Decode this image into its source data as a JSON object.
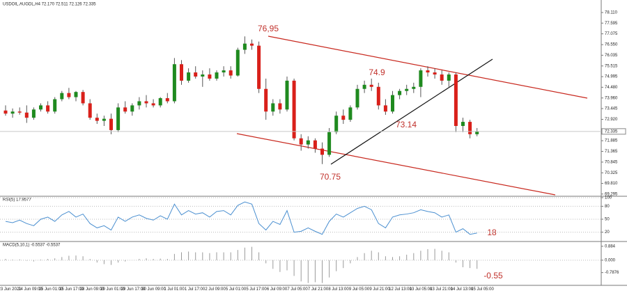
{
  "chart_data": [
    {
      "type": "candlestick",
      "title": "USDOIL.AUGDL,H4  72.170 72.511 72.126 72.335",
      "up_color": "#1f8a1f",
      "down_color": "#d9201a",
      "ylim": [
        69.22,
        78.65
      ],
      "yticks": [
        {
          "value": 78.11,
          "label": "78.110"
        },
        77.595,
        77.075,
        {
          "value": 76.55,
          "label": "76.550"
        },
        76.035,
        75.515,
        74.995,
        {
          "value": 74.48,
          "label": "74.480"
        },
        {
          "value": 73.96,
          "label": "73.960"
        },
        73.445,
        {
          "value": 72.92,
          "label": "72.920"
        },
        71.885,
        71.365,
        70.845,
        70.325,
        {
          "value": 69.81,
          "label": "69.810"
        },
        69.295
      ],
      "last_price": 72.335,
      "annotations": [
        "76,95",
        "74.9",
        "73.14",
        "70.75"
      ],
      "time_labels": [
        "23 Jun 2021",
        "24 Jun 09:00",
        "25 Jun 01:00",
        "25 Jun 17:00",
        "28 Jun 09:00",
        "29 Jun 01:00",
        "29 Jun 17:00",
        "30 Jun 09:00",
        "1 Jul 01:00",
        "1 Jul 17:00",
        "2 Jul 09:00",
        "5 Jul 01:00",
        "5 Jul 17:00",
        "6 Jul 09:00",
        "7 Jul 05:00",
        "7 Jul 21:00",
        "8 Jul 13:00",
        "9 Jul 05:00",
        "9 Jul 21:00",
        "12 Jul 13:00",
        "13 Jul 05:00",
        "13 Jul 21:00",
        "14 Jul 13:00",
        "15 Jul 05:00"
      ],
      "ohlc": [
        [
          73.35,
          73.6,
          73.1,
          73.2
        ],
        [
          73.2,
          73.45,
          73.0,
          73.3
        ],
        [
          73.3,
          73.5,
          73.15,
          73.25
        ],
        [
          73.25,
          73.6,
          72.75,
          73.0
        ],
        [
          73.0,
          73.5,
          72.9,
          73.4
        ],
        [
          73.4,
          73.7,
          73.3,
          73.6
        ],
        [
          73.6,
          73.8,
          73.2,
          73.3
        ],
        [
          73.3,
          74.0,
          73.2,
          73.9
        ],
        [
          73.9,
          74.3,
          73.8,
          74.2
        ],
        [
          74.2,
          74.45,
          73.9,
          74.0
        ],
        [
          74.0,
          74.3,
          73.8,
          74.25
        ],
        [
          74.25,
          74.35,
          73.6,
          73.7
        ],
        [
          73.7,
          73.9,
          72.9,
          73.0
        ],
        [
          73.0,
          73.2,
          72.7,
          72.85
        ],
        [
          72.85,
          73.1,
          72.6,
          72.95
        ],
        [
          72.95,
          73.2,
          72.2,
          72.4
        ],
        [
          72.4,
          73.7,
          72.3,
          73.5
        ],
        [
          73.5,
          73.8,
          73.2,
          73.3
        ],
        [
          73.3,
          73.7,
          73.1,
          73.6
        ],
        [
          73.6,
          74.0,
          73.4,
          73.8
        ],
        [
          73.8,
          74.1,
          73.5,
          73.7
        ],
        [
          73.7,
          73.9,
          73.5,
          73.6
        ],
        [
          73.6,
          74.0,
          73.5,
          73.95
        ],
        [
          73.95,
          74.2,
          73.7,
          73.8
        ],
        [
          73.8,
          75.9,
          73.7,
          75.6
        ],
        [
          75.6,
          75.8,
          74.6,
          74.8
        ],
        [
          74.8,
          75.4,
          74.7,
          75.2
        ],
        [
          75.2,
          75.5,
          74.9,
          75.0
        ],
        [
          75.0,
          75.3,
          74.5,
          75.1
        ],
        [
          75.1,
          75.4,
          74.8,
          74.9
        ],
        [
          74.9,
          75.3,
          74.8,
          75.2
        ],
        [
          75.2,
          75.5,
          75.0,
          75.3
        ],
        [
          75.3,
          75.5,
          74.9,
          75.05
        ],
        [
          75.05,
          76.4,
          75.0,
          76.3
        ],
        [
          76.3,
          76.95,
          76.1,
          76.6
        ],
        [
          76.6,
          76.8,
          76.3,
          76.5
        ],
        [
          76.5,
          76.7,
          74.2,
          74.4
        ],
        [
          74.4,
          74.9,
          72.9,
          73.3
        ],
        [
          73.3,
          73.9,
          73.1,
          73.7
        ],
        [
          73.7,
          73.9,
          73.2,
          73.4
        ],
        [
          73.4,
          75.0,
          73.3,
          74.8
        ],
        [
          74.8,
          74.9,
          71.9,
          72.0
        ],
        [
          72.0,
          72.2,
          71.4,
          71.7
        ],
        [
          71.7,
          72.1,
          71.5,
          71.9
        ],
        [
          71.9,
          72.0,
          71.3,
          71.5
        ],
        [
          71.5,
          71.8,
          70.75,
          71.2
        ],
        [
          71.2,
          72.5,
          71.1,
          72.3
        ],
        [
          72.3,
          73.3,
          72.2,
          73.1
        ],
        [
          73.1,
          73.4,
          72.7,
          72.9
        ],
        [
          72.9,
          73.6,
          72.8,
          73.5
        ],
        [
          73.5,
          74.6,
          73.4,
          74.4
        ],
        [
          74.4,
          74.8,
          74.2,
          74.6
        ],
        [
          74.6,
          74.9,
          74.3,
          74.5
        ],
        [
          74.5,
          74.7,
          73.4,
          73.6
        ],
        [
          73.6,
          73.9,
          73.14,
          73.3
        ],
        [
          73.3,
          74.3,
          73.2,
          74.1
        ],
        [
          74.1,
          74.4,
          73.9,
          74.3
        ],
        [
          74.3,
          74.6,
          74.1,
          74.4
        ],
        [
          74.4,
          74.7,
          74.2,
          74.5
        ],
        [
          74.5,
          75.4,
          74.0,
          75.3
        ],
        [
          75.3,
          75.5,
          75.0,
          75.2
        ],
        [
          75.2,
          75.4,
          74.9,
          75.1
        ],
        [
          75.1,
          75.3,
          74.6,
          74.8
        ],
        [
          74.8,
          75.2,
          74.5,
          75.1
        ],
        [
          75.1,
          75.2,
          72.3,
          72.6
        ],
        [
          72.6,
          73.0,
          72.3,
          72.8
        ],
        [
          72.8,
          72.9,
          72.0,
          72.2
        ],
        [
          72.2,
          72.5,
          72.1,
          72.335
        ]
      ]
    },
    {
      "type": "line",
      "title": "RSI(5) 17.9577",
      "color": "#4a8fd0",
      "ylim": [
        0,
        100
      ],
      "yticks": [
        100,
        80,
        50,
        20
      ],
      "annotations": [
        "18"
      ],
      "values": [
        45,
        42,
        48,
        40,
        35,
        50,
        55,
        45,
        60,
        68,
        55,
        62,
        40,
        30,
        35,
        25,
        55,
        45,
        55,
        60,
        52,
        48,
        58,
        50,
        85,
        60,
        70,
        62,
        65,
        55,
        68,
        70,
        60,
        82,
        90,
        85,
        40,
        25,
        45,
        38,
        70,
        20,
        22,
        30,
        22,
        15,
        45,
        62,
        55,
        65,
        75,
        80,
        72,
        40,
        30,
        55,
        60,
        62,
        65,
        72,
        68,
        65,
        55,
        60,
        20,
        28,
        15,
        18
      ]
    },
    {
      "type": "bar",
      "title": "MACD(5,10,1) -0.5537 -0.5537",
      "color": "#9a9a9a",
      "ylim": [
        -1.6,
        1.1
      ],
      "yticks": [
        0.884,
        {
          "value": 0,
          "label": "0.000"
        },
        -0.7876
      ],
      "annotations": [
        "-0.55"
      ],
      "values": [
        0.08,
        0.04,
        0.05,
        -0.03,
        -0.08,
        0.03,
        0.08,
        0.12,
        0.2,
        0.28,
        0.3,
        0.25,
        0.08,
        -0.15,
        -0.25,
        -0.3,
        -0.15,
        -0.08,
        0.0,
        0.08,
        0.12,
        0.08,
        0.1,
        0.08,
        0.4,
        0.5,
        0.55,
        0.5,
        0.5,
        0.45,
        0.5,
        0.5,
        0.5,
        0.65,
        0.8,
        0.85,
        0.5,
        -0.2,
        -0.55,
        -0.75,
        -0.65,
        -1.0,
        -1.35,
        -1.45,
        -1.4,
        -1.45,
        -1.1,
        -0.7,
        -0.5,
        -0.2,
        0.2,
        0.45,
        0.6,
        0.5,
        0.25,
        0.2,
        0.25,
        0.35,
        0.45,
        0.6,
        0.7,
        0.72,
        0.6,
        0.5,
        -0.15,
        -0.45,
        -0.5,
        -0.55
      ]
    }
  ]
}
